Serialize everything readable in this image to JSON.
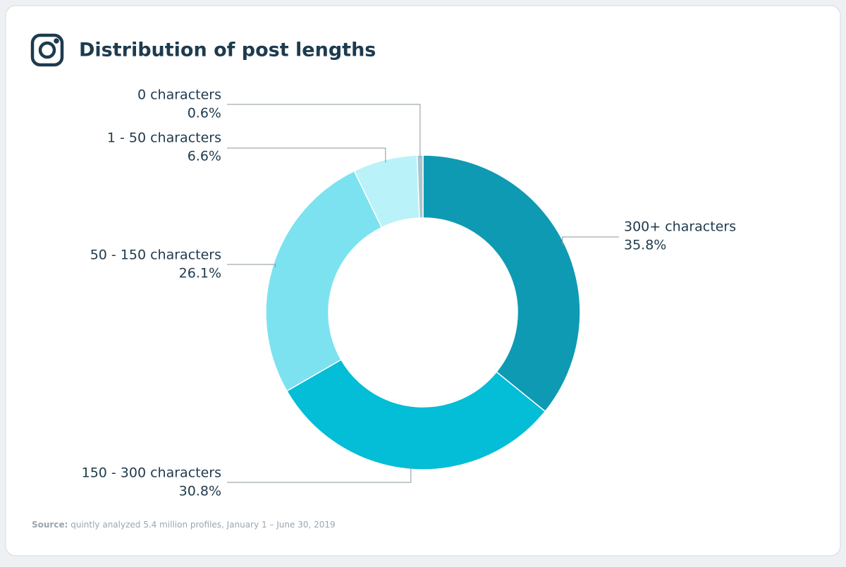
{
  "chart_data": {
    "type": "pie",
    "donut": true,
    "title": "Distribution of post lengths",
    "categories": [
      "300+ characters",
      "150 - 300 characters",
      "50 - 150 characters",
      "1 - 50 characters",
      "0 characters"
    ],
    "values": [
      35.8,
      30.8,
      26.1,
      6.6,
      0.6
    ],
    "value_labels": [
      "35.8%",
      "30.8%",
      "26.1%",
      "6.6%",
      "0.6%"
    ],
    "colors": [
      "#0e9ab3",
      "#04bdd6",
      "#7ce2f0",
      "#b9f2f8",
      "#a9c6cf"
    ],
    "source_label": "Source:",
    "source_text": "quintly analyzed 5.4 million profiles, January 1 – June 30, 2019"
  }
}
